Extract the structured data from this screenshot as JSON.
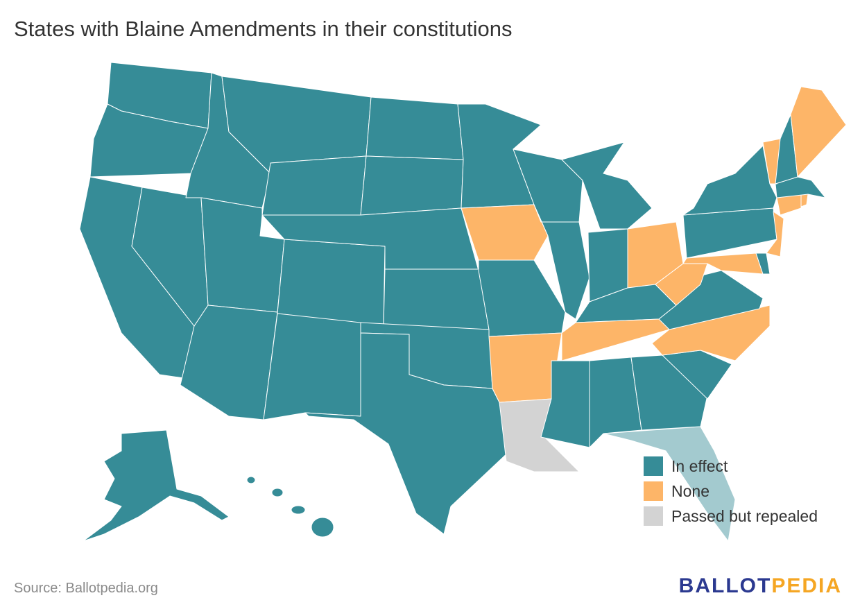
{
  "title": "States with Blaine Amendments in their constitutions",
  "legend": [
    {
      "label": "In effect",
      "color": "#368c97"
    },
    {
      "label": "None",
      "color": "#fdb568"
    },
    {
      "label": "Passed but repealed",
      "color": "#d3d3d3"
    }
  ],
  "source": "Source: Ballotpedia.org",
  "logo": [
    "BALLOT",
    "PEDIA"
  ]
}
